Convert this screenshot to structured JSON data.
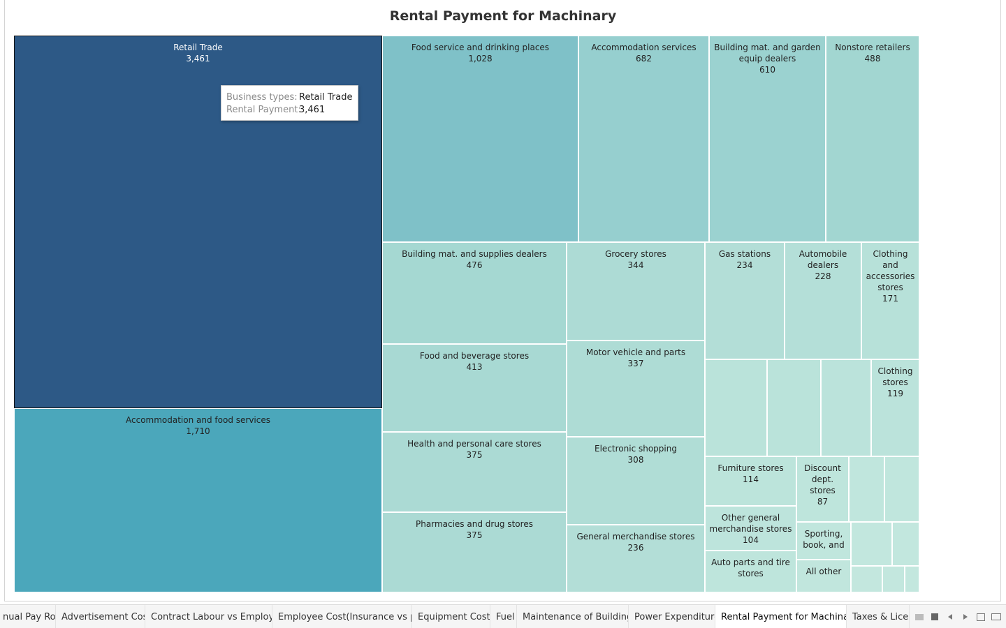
{
  "chart_data": {
    "type": "treemap",
    "title": "Rental Payment for Machinary",
    "items": [
      {
        "label": "Retail Trade",
        "value": "3,461",
        "color": "#2d5986"
      },
      {
        "label": "Accommodation and food services",
        "value": "1,710",
        "color": "#4ba7bb"
      },
      {
        "label": "Food service and drinking places",
        "value": "1,028",
        "color": "#7fc1c8"
      },
      {
        "label": "Accommodation services",
        "value": "682",
        "color": "#96cfcf"
      },
      {
        "label": "Building mat. and garden equip dealers",
        "value": "610",
        "color": "#9bd2d0"
      },
      {
        "label": "Nonstore retailers",
        "value": "488",
        "color": "#a2d6d1"
      },
      {
        "label": "Building mat. and supplies dealers",
        "value": "476",
        "color": "#a5d8d2"
      },
      {
        "label": "Food and beverage stores",
        "value": "413",
        "color": "#a8d9d3"
      },
      {
        "label": "Health and personal care stores",
        "value": "375",
        "color": "#abdad4"
      },
      {
        "label": "Pharmacies and drug stores",
        "value": "375",
        "color": "#abdad4"
      },
      {
        "label": "Grocery stores",
        "value": "344",
        "color": "#addbd5"
      },
      {
        "label": "Motor vehicle and parts",
        "value": "337",
        "color": "#aedcd5"
      },
      {
        "label": "Electronic shopping",
        "value": "308",
        "color": "#b0ddd6"
      },
      {
        "label": "General merchandise stores",
        "value": "236",
        "color": "#b3ded7"
      },
      {
        "label": "Gas stations",
        "value": "234",
        "color": "#b3ded7"
      },
      {
        "label": "Automobile dealers",
        "value": "228",
        "color": "#b4dfd8"
      },
      {
        "label": "Clothing and accessories stores",
        "value": "171",
        "color": "#b7e1d9"
      },
      {
        "label": "",
        "value": "",
        "color": "#bae3da"
      },
      {
        "label": "",
        "value": "",
        "color": "#bae3da"
      },
      {
        "label": "",
        "value": "",
        "color": "#bbe3db"
      },
      {
        "label": "Clothing stores",
        "value": "119",
        "color": "#bbe3db"
      },
      {
        "label": "Furniture stores",
        "value": "114",
        "color": "#bce4db"
      },
      {
        "label": "Other general merchandise stores",
        "value": "104",
        "color": "#bde4dc"
      },
      {
        "label": "Auto parts and tire stores",
        "value": "",
        "color": "#bee5dc"
      },
      {
        "label": "Discount dept. stores",
        "value": "87",
        "color": "#bee5dc"
      },
      {
        "label": "",
        "value": "",
        "color": "#c0e6dd"
      },
      {
        "label": "",
        "value": "",
        "color": "#c0e6dd"
      },
      {
        "label": "Sporting, book, and",
        "value": "",
        "color": "#c0e6dd"
      },
      {
        "label": "All other",
        "value": "",
        "color": "#c1e6dd"
      },
      {
        "label": "",
        "value": "",
        "color": "#c2e7de"
      },
      {
        "label": "",
        "value": "",
        "color": "#c2e7de"
      },
      {
        "label": "",
        "value": "",
        "color": "#c3e7de"
      },
      {
        "label": "",
        "value": "",
        "color": "#c3e7de"
      },
      {
        "label": "",
        "value": "",
        "color": "#c3e7de"
      }
    ]
  },
  "tooltip": {
    "k1": "Business types:",
    "v1": "Retail Trade",
    "k2": "Rental Payment:",
    "v2": "3,461"
  },
  "tabs": [
    "nual Pay Roll",
    "Advertisement Cost",
    "Contract Labour vs Employee",
    "Employee Cost(Insurance vs pe...",
    "Equipment Costs",
    "Fuel",
    "Maintenance of Buildings",
    "Power Expenditure",
    "Rental Payment for Machinary",
    "Taxes & Licen"
  ],
  "active_tab_index": 8
}
